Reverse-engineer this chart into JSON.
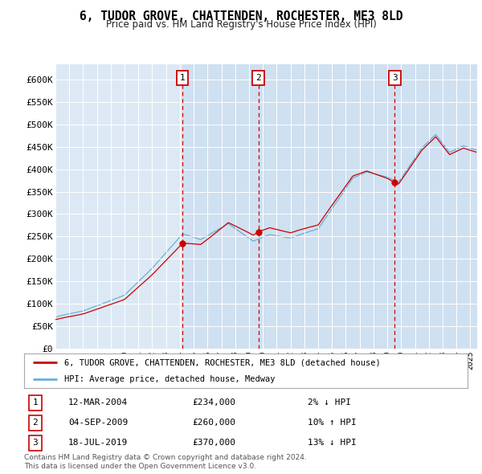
{
  "title": "6, TUDOR GROVE, CHATTENDEN, ROCHESTER, ME3 8LD",
  "subtitle": "Price paid vs. HM Land Registry's House Price Index (HPI)",
  "ylabel_ticks": [
    "£0",
    "£50K",
    "£100K",
    "£150K",
    "£200K",
    "£250K",
    "£300K",
    "£350K",
    "£400K",
    "£450K",
    "£500K",
    "£550K",
    "£600K"
  ],
  "ytick_values": [
    0,
    50000,
    100000,
    150000,
    200000,
    250000,
    300000,
    350000,
    400000,
    450000,
    500000,
    550000,
    600000
  ],
  "ylim": [
    0,
    635000
  ],
  "plot_bg_color": "#dce9f5",
  "legend_label_red": "6, TUDOR GROVE, CHATTENDEN, ROCHESTER, ME3 8LD (detached house)",
  "legend_label_blue": "HPI: Average price, detached house, Medway",
  "sale_markers": [
    {
      "label": "1",
      "date_str": "12-MAR-2004",
      "price": 234000,
      "note": "2% ↓ HPI",
      "year": 2004.19
    },
    {
      "label": "2",
      "date_str": "04-SEP-2009",
      "price": 260000,
      "note": "10% ↑ HPI",
      "year": 2009.67
    },
    {
      "label": "3",
      "date_str": "18-JUL-2019",
      "price": 370000,
      "note": "13% ↓ HPI",
      "year": 2019.54
    }
  ],
  "footer": "Contains HM Land Registry data © Crown copyright and database right 2024.\nThis data is licensed under the Open Government Licence v3.0.",
  "hpi_color": "#6baed6",
  "sale_color": "#cc0000",
  "marker_border_color": "#cc0000",
  "shade_color": "#c8dcf0",
  "xlim_start": 1995,
  "xlim_end": 2025.5
}
